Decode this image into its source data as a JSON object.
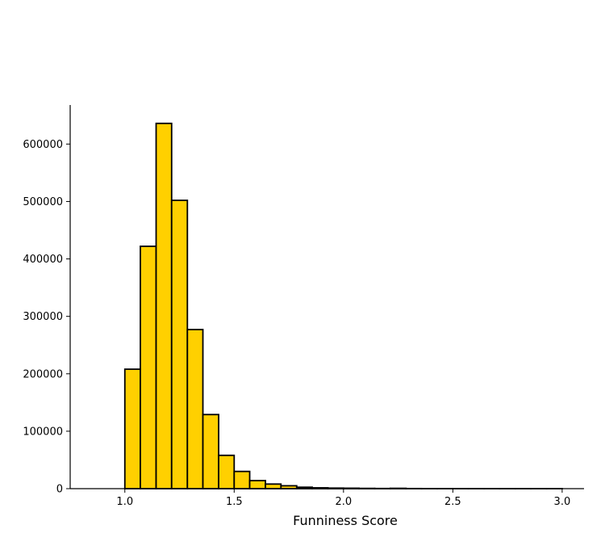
{
  "chart_data": {
    "type": "bar",
    "subtype": "histogram",
    "xlabel": "Funniness Score",
    "ylabel": "",
    "bin_width": 0.0714,
    "bins": [
      {
        "x0": 0.857,
        "x1": 0.929,
        "count": 0
      },
      {
        "x0": 0.929,
        "x1": 1.0,
        "count": 0
      },
      {
        "x0": 1.0,
        "x1": 1.071,
        "count": 208000
      },
      {
        "x0": 1.071,
        "x1": 1.143,
        "count": 422000
      },
      {
        "x0": 1.143,
        "x1": 1.214,
        "count": 636000
      },
      {
        "x0": 1.214,
        "x1": 1.286,
        "count": 502000
      },
      {
        "x0": 1.286,
        "x1": 1.357,
        "count": 277000
      },
      {
        "x0": 1.357,
        "x1": 1.429,
        "count": 129000
      },
      {
        "x0": 1.429,
        "x1": 1.5,
        "count": 58000
      },
      {
        "x0": 1.5,
        "x1": 1.571,
        "count": 30000
      },
      {
        "x0": 1.571,
        "x1": 1.643,
        "count": 14000
      },
      {
        "x0": 1.643,
        "x1": 1.714,
        "count": 8000
      },
      {
        "x0": 1.714,
        "x1": 1.786,
        "count": 5000
      },
      {
        "x0": 1.786,
        "x1": 1.857,
        "count": 2500
      },
      {
        "x0": 1.857,
        "x1": 1.929,
        "count": 1500
      },
      {
        "x0": 1.929,
        "x1": 2.0,
        "count": 1000
      },
      {
        "x0": 2.0,
        "x1": 2.071,
        "count": 800
      },
      {
        "x0": 2.071,
        "x1": 2.143,
        "count": 500
      },
      {
        "x0": 2.143,
        "x1": 2.214,
        "count": 300
      },
      {
        "x0": 2.214,
        "x1": 2.286,
        "count": 600
      },
      {
        "x0": 2.286,
        "x1": 2.357,
        "count": 200
      },
      {
        "x0": 2.357,
        "x1": 2.429,
        "count": 100
      },
      {
        "x0": 2.429,
        "x1": 2.5,
        "count": 100
      },
      {
        "x0": 2.5,
        "x1": 2.571,
        "count": 50
      },
      {
        "x0": 2.571,
        "x1": 2.643,
        "count": 50
      },
      {
        "x0": 2.643,
        "x1": 2.714,
        "count": 30
      },
      {
        "x0": 2.714,
        "x1": 2.786,
        "count": 20
      },
      {
        "x0": 2.786,
        "x1": 2.857,
        "count": 20
      },
      {
        "x0": 2.857,
        "x1": 2.929,
        "count": 10
      },
      {
        "x0": 2.929,
        "x1": 3.0,
        "count": 10
      }
    ],
    "xlim": [
      0.75,
      3.1
    ],
    "ylim": [
      0,
      668000
    ],
    "x_ticks": [
      1.0,
      1.5,
      2.0,
      2.5,
      3.0
    ],
    "x_tick_labels": [
      "1.0",
      "1.5",
      "2.0",
      "2.5",
      "3.0"
    ],
    "y_ticks": [
      0,
      100000,
      200000,
      300000,
      400000,
      500000,
      600000
    ],
    "y_tick_labels": [
      "0",
      "100000",
      "200000",
      "300000",
      "400000",
      "500000",
      "600000"
    ],
    "grid": false,
    "legend": "none",
    "colors": {
      "bar_fill": "#FFD000",
      "bar_edge": "#000000",
      "axis": "#000000"
    }
  }
}
